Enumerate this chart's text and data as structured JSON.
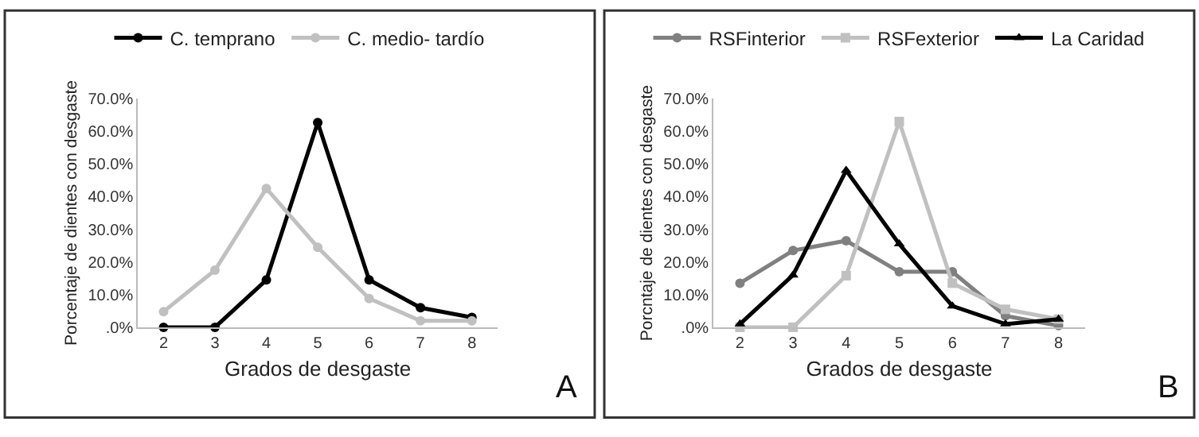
{
  "chart_data": [
    {
      "type": "line",
      "categories": [
        "2",
        "3",
        "4",
        "5",
        "6",
        "7",
        "8"
      ],
      "xlabel": "Grados de desgaste",
      "ylabel": "Porcentaje de dientes con desgaste",
      "ylim": [
        0,
        70
      ],
      "yticks": [
        {
          "value": 0,
          "label": ".0%"
        },
        {
          "value": 10,
          "label": "10.0%"
        },
        {
          "value": 20,
          "label": "20.0%"
        },
        {
          "value": 30,
          "label": "30.0%"
        },
        {
          "value": 40,
          "label": "40.0%"
        },
        {
          "value": 50,
          "label": "50.0%"
        },
        {
          "value": 60,
          "label": "60.0%"
        },
        {
          "value": 70,
          "label": "70.0%"
        }
      ],
      "legend": "top",
      "annotations": [
        "A"
      ],
      "series": [
        {
          "name": "C. temprano",
          "color": "#000000",
          "marker": "circle",
          "values": [
            0,
            0,
            14.5,
            62.7,
            14.5,
            6,
            3
          ]
        },
        {
          "name": "C. medio- tardío",
          "color": "#c0c0c0",
          "marker": "circle",
          "values": [
            4.8,
            17.5,
            42.5,
            24.5,
            8.8,
            2,
            2
          ]
        }
      ]
    },
    {
      "type": "line",
      "categories": [
        "2",
        "3",
        "4",
        "5",
        "6",
        "7",
        "8"
      ],
      "xlabel": "Grados de desgaste",
      "ylabel": "Porcntaje de dientes con desgaste",
      "ylim": [
        0,
        70
      ],
      "yticks": [
        {
          "value": 0,
          "label": ".0%"
        },
        {
          "value": 10,
          "label": "10.0%"
        },
        {
          "value": 20,
          "label": "20.0%"
        },
        {
          "value": 30,
          "label": "30.0%"
        },
        {
          "value": 40,
          "label": "40.0%"
        },
        {
          "value": 50,
          "label": "50.0%"
        },
        {
          "value": 60,
          "label": "60.0%"
        },
        {
          "value": 70,
          "label": "70.0%"
        }
      ],
      "legend": "top",
      "annotations": [
        "B"
      ],
      "series": [
        {
          "name": "RSFinterior",
          "color": "#808080",
          "marker": "circle",
          "values": [
            13.5,
            23.5,
            26.5,
            17,
            17,
            3.5,
            0.5
          ]
        },
        {
          "name": "RSFexterior",
          "color": "#c0c0c0",
          "marker": "square",
          "values": [
            0,
            0,
            15.8,
            63,
            13.5,
            5.5,
            2.5
          ]
        },
        {
          "name": "La Caridad",
          "color": "#000000",
          "marker": "triangle",
          "values": [
            1,
            16,
            48,
            25.5,
            6.5,
            1,
            2.5
          ]
        }
      ]
    }
  ]
}
